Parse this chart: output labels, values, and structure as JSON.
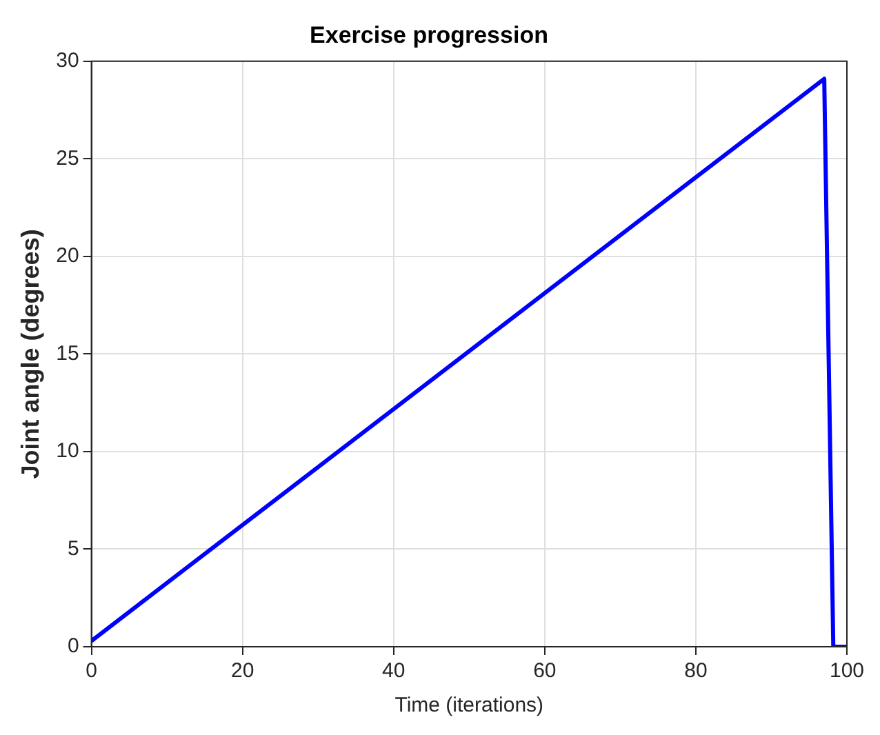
{
  "chart_data": {
    "type": "line",
    "title": "Exercise progression",
    "xlabel": "Time (iterations)",
    "ylabel": "Joint angle (degrees)",
    "series": [
      {
        "color": "#0000ff",
        "x": [
          0,
          97,
          98.2,
          100
        ],
        "values": [
          0.3,
          29.1,
          0,
          0
        ]
      }
    ],
    "xlim": [
      0,
      100
    ],
    "xticks": [
      0,
      20,
      40,
      60,
      80,
      100
    ],
    "ylim": [
      0,
      30
    ],
    "yticks": [
      0,
      5,
      10,
      15,
      20,
      25,
      30
    ],
    "grid": true,
    "legend": false,
    "marker": "none",
    "line_style": "solid"
  }
}
